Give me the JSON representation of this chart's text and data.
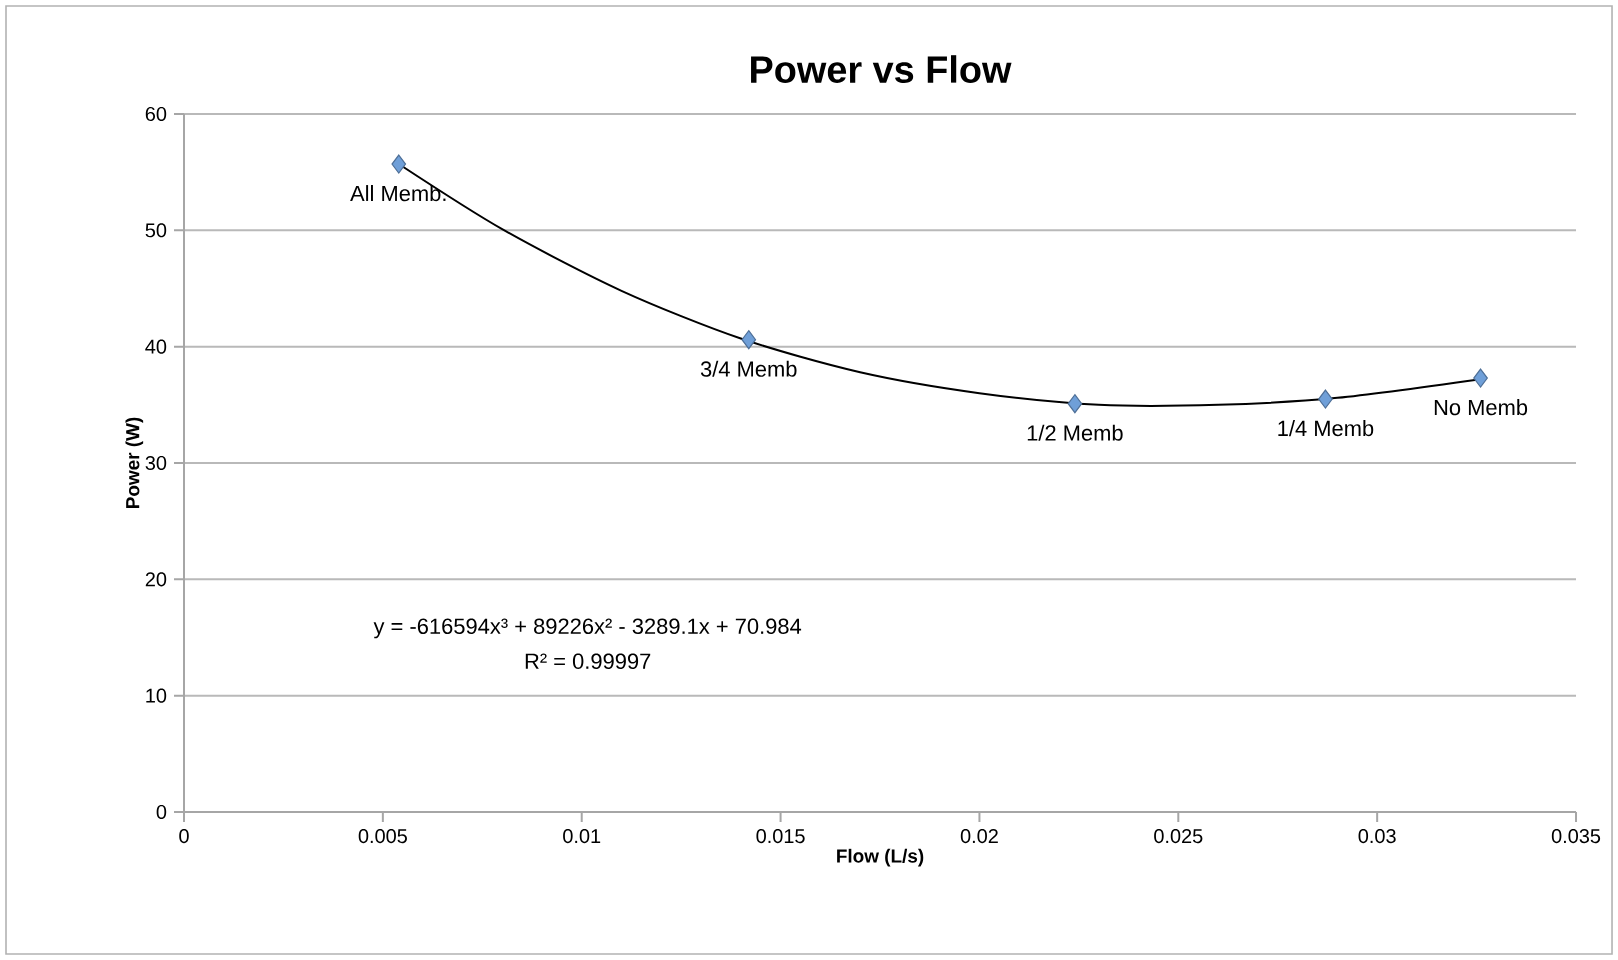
{
  "chart_data": {
    "type": "scatter",
    "title": "Power vs Flow",
    "xlabel": "Flow (L/s)",
    "ylabel": "Power (W)",
    "xlim": [
      0,
      0.035
    ],
    "ylim": [
      0,
      60
    ],
    "xticks": [
      0,
      0.005,
      0.01,
      0.015,
      0.02,
      0.025,
      0.03,
      0.035
    ],
    "yticks": [
      0,
      10,
      20,
      30,
      40,
      50,
      60
    ],
    "grid": "y",
    "legend": false,
    "marker": "diamond",
    "series": [
      {
        "color": "#6f9fd8",
        "x": [
          0.0054,
          0.0142,
          0.0224,
          0.0287,
          0.0326
        ],
        "values": [
          55.7,
          40.6,
          35.1,
          35.5,
          37.3
        ]
      },
      {
        "type": "line",
        "color": "#000000",
        "marker": "none",
        "line_style": "solid",
        "x": [
          0.0054,
          0.008,
          0.011,
          0.014,
          0.017,
          0.02,
          0.023,
          0.026,
          0.029,
          0.0326
        ],
        "values": [
          55.7,
          50.1,
          44.8,
          40.7,
          37.8,
          36.0,
          35.0,
          35.0,
          35.6,
          37.2
        ]
      }
    ],
    "annotations": [
      {
        "text": "All Memb.",
        "x": 0.0054,
        "y": 55.7
      },
      {
        "text": "3/4 Memb",
        "x": 0.0142,
        "y": 40.6
      },
      {
        "text": "1/2 Memb",
        "x": 0.0224,
        "y": 35.1
      },
      {
        "text": "1/4 Memb",
        "x": 0.0287,
        "y": 35.5
      },
      {
        "text": "No Memb",
        "x": 0.0326,
        "y": 37.3
      },
      "y = -616594x³ + 89226x² - 3289.1x + 70.984",
      "R² = 0.99997"
    ]
  }
}
